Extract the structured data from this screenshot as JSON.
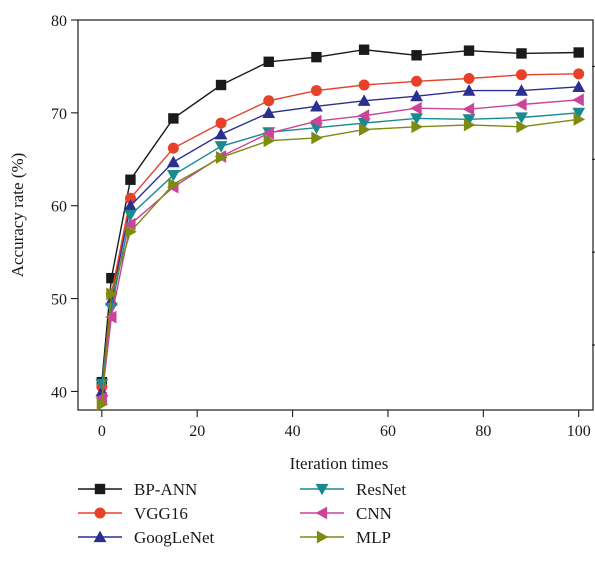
{
  "chart_data": {
    "type": "line",
    "xlabel": "Iteration times",
    "ylabel": "Accuracy rate (%)",
    "xlim": [
      -5,
      103
    ],
    "ylim": [
      38,
      80
    ],
    "xticks": [
      0,
      20,
      40,
      60,
      80,
      100
    ],
    "yticks": [
      40,
      50,
      60,
      70,
      80
    ],
    "grid": false,
    "legend_position": "bottom",
    "x": [
      0,
      2,
      6,
      15,
      25,
      35,
      45,
      55,
      66,
      77,
      88,
      100
    ],
    "series": [
      {
        "name": "BP-ANN",
        "color": "#1a1a1a",
        "marker": "square",
        "values": [
          41.0,
          52.2,
          62.8,
          69.4,
          73.0,
          75.5,
          76.0,
          76.8,
          76.2,
          76.7,
          76.4,
          76.5
        ]
      },
      {
        "name": "VGG16",
        "color": "#e8412a",
        "marker": "circle",
        "values": [
          40.5,
          50.5,
          60.8,
          66.2,
          68.9,
          71.3,
          72.4,
          73.0,
          73.4,
          73.7,
          74.1,
          74.2
        ]
      },
      {
        "name": "GoogLeNet",
        "color": "#2b2f8f",
        "marker": "triangle-up",
        "values": [
          40.0,
          49.8,
          60.0,
          64.7,
          67.7,
          70.0,
          70.7,
          71.3,
          71.8,
          72.4,
          72.4,
          72.8
        ]
      },
      {
        "name": "ResNet",
        "color": "#1a8a8f",
        "marker": "triangle-down",
        "values": [
          40.8,
          49.0,
          59.0,
          63.3,
          66.4,
          67.9,
          68.4,
          68.9,
          69.4,
          69.3,
          69.5,
          70.0
        ]
      },
      {
        "name": "CNN",
        "color": "#c9449a",
        "marker": "triangle-left",
        "values": [
          39.3,
          48.0,
          58.0,
          62.0,
          65.3,
          67.8,
          69.1,
          69.7,
          70.5,
          70.4,
          70.9,
          71.4
        ]
      },
      {
        "name": "MLP",
        "color": "#7f8a10",
        "marker": "triangle-right",
        "values": [
          38.6,
          50.5,
          57.2,
          62.3,
          65.2,
          67.0,
          67.3,
          68.2,
          68.5,
          68.7,
          68.5,
          69.3
        ]
      }
    ]
  }
}
